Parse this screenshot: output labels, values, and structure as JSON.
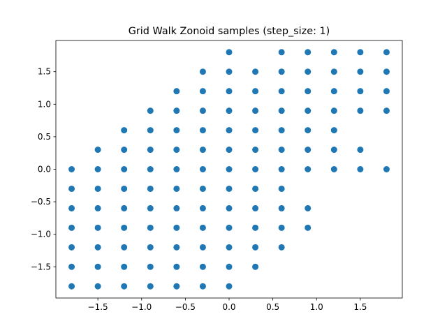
{
  "chart_data": {
    "type": "scatter",
    "title": "Grid Walk Zonoid samples (step_size: 1)",
    "xlabel": "",
    "ylabel": "",
    "xlim": [
      -1.98,
      1.98
    ],
    "ylim": [
      -1.98,
      1.98
    ],
    "x_ticks": [
      -1.5,
      -1.0,
      -0.5,
      0.0,
      0.5,
      1.0,
      1.5
    ],
    "x_tick_labels": [
      "−1.5",
      "−1.0",
      "−0.5",
      "0.0",
      "0.5",
      "1.0",
      "1.5"
    ],
    "y_ticks": [
      -1.5,
      -1.0,
      -0.5,
      0.0,
      0.5,
      1.0,
      1.5
    ],
    "y_tick_labels": [
      "−1.5",
      "−1.0",
      "−0.5",
      "0.0",
      "0.5",
      "1.0",
      "1.5"
    ],
    "grid": false,
    "marker_color": "#1f77b4",
    "points": [
      [
        -1.8,
        0.0
      ],
      [
        -1.8,
        -0.3
      ],
      [
        -1.8,
        -0.6
      ],
      [
        -1.8,
        -0.9
      ],
      [
        -1.8,
        -1.2
      ],
      [
        -1.8,
        -1.5
      ],
      [
        -1.8,
        -1.8
      ],
      [
        -1.5,
        0.3
      ],
      [
        -1.5,
        0.0
      ],
      [
        -1.5,
        -0.3
      ],
      [
        -1.5,
        -0.6
      ],
      [
        -1.5,
        -0.9
      ],
      [
        -1.5,
        -1.2
      ],
      [
        -1.5,
        -1.5
      ],
      [
        -1.5,
        -1.8
      ],
      [
        -1.2,
        0.6
      ],
      [
        -1.2,
        0.3
      ],
      [
        -1.2,
        0.0
      ],
      [
        -1.2,
        -0.3
      ],
      [
        -1.2,
        -0.6
      ],
      [
        -1.2,
        -0.9
      ],
      [
        -1.2,
        -1.2
      ],
      [
        -1.2,
        -1.5
      ],
      [
        -1.2,
        -1.8
      ],
      [
        -0.9,
        0.9
      ],
      [
        -0.9,
        0.6
      ],
      [
        -0.9,
        0.3
      ],
      [
        -0.9,
        0.0
      ],
      [
        -0.9,
        -0.3
      ],
      [
        -0.9,
        -0.6
      ],
      [
        -0.9,
        -0.9
      ],
      [
        -0.9,
        -1.2
      ],
      [
        -0.9,
        -1.5
      ],
      [
        -0.9,
        -1.8
      ],
      [
        -0.6,
        1.2
      ],
      [
        -0.6,
        0.9
      ],
      [
        -0.6,
        0.6
      ],
      [
        -0.6,
        0.3
      ],
      [
        -0.6,
        0.0
      ],
      [
        -0.6,
        -0.3
      ],
      [
        -0.6,
        -0.6
      ],
      [
        -0.6,
        -0.9
      ],
      [
        -0.6,
        -1.2
      ],
      [
        -0.6,
        -1.5
      ],
      [
        -0.6,
        -1.8
      ],
      [
        -0.3,
        1.5
      ],
      [
        -0.3,
        1.2
      ],
      [
        -0.3,
        0.9
      ],
      [
        -0.3,
        0.6
      ],
      [
        -0.3,
        0.3
      ],
      [
        -0.3,
        0.0
      ],
      [
        -0.3,
        -0.3
      ],
      [
        -0.3,
        -0.6
      ],
      [
        -0.3,
        -0.9
      ],
      [
        -0.3,
        -1.2
      ],
      [
        -0.3,
        -1.5
      ],
      [
        -0.3,
        -1.8
      ],
      [
        0.0,
        1.8
      ],
      [
        0.0,
        1.5
      ],
      [
        0.0,
        1.2
      ],
      [
        0.0,
        0.9
      ],
      [
        0.0,
        0.6
      ],
      [
        0.0,
        0.3
      ],
      [
        0.0,
        0.0
      ],
      [
        0.0,
        -0.3
      ],
      [
        0.0,
        -0.6
      ],
      [
        0.0,
        -0.9
      ],
      [
        0.0,
        -1.2
      ],
      [
        0.0,
        -1.5
      ],
      [
        0.0,
        -1.8
      ],
      [
        0.3,
        1.5
      ],
      [
        0.3,
        1.2
      ],
      [
        0.3,
        0.9
      ],
      [
        0.3,
        0.6
      ],
      [
        0.3,
        0.3
      ],
      [
        0.3,
        0.0
      ],
      [
        0.3,
        -0.3
      ],
      [
        0.3,
        -0.6
      ],
      [
        0.3,
        -0.9
      ],
      [
        0.3,
        -1.2
      ],
      [
        0.3,
        -1.5
      ],
      [
        0.6,
        1.8
      ],
      [
        0.6,
        1.5
      ],
      [
        0.6,
        1.2
      ],
      [
        0.6,
        0.9
      ],
      [
        0.6,
        0.6
      ],
      [
        0.6,
        0.3
      ],
      [
        0.6,
        0.0
      ],
      [
        0.6,
        -0.3
      ],
      [
        0.6,
        -0.6
      ],
      [
        0.6,
        -0.9
      ],
      [
        0.6,
        -1.2
      ],
      [
        0.9,
        1.8
      ],
      [
        0.9,
        1.5
      ],
      [
        0.9,
        1.2
      ],
      [
        0.9,
        0.9
      ],
      [
        0.9,
        0.6
      ],
      [
        0.9,
        0.3
      ],
      [
        0.9,
        0.0
      ],
      [
        0.9,
        -0.6
      ],
      [
        0.9,
        -0.9
      ],
      [
        1.2,
        1.8
      ],
      [
        1.2,
        1.5
      ],
      [
        1.2,
        1.2
      ],
      [
        1.2,
        0.9
      ],
      [
        1.2,
        0.6
      ],
      [
        1.2,
        0.3
      ],
      [
        1.2,
        0.0
      ],
      [
        1.5,
        1.8
      ],
      [
        1.5,
        1.5
      ],
      [
        1.5,
        1.2
      ],
      [
        1.5,
        0.9
      ],
      [
        1.5,
        0.3
      ],
      [
        1.5,
        0.0
      ],
      [
        1.8,
        1.8
      ],
      [
        1.8,
        1.5
      ],
      [
        1.8,
        1.2
      ],
      [
        1.8,
        0.9
      ],
      [
        1.8,
        0.0
      ]
    ]
  }
}
